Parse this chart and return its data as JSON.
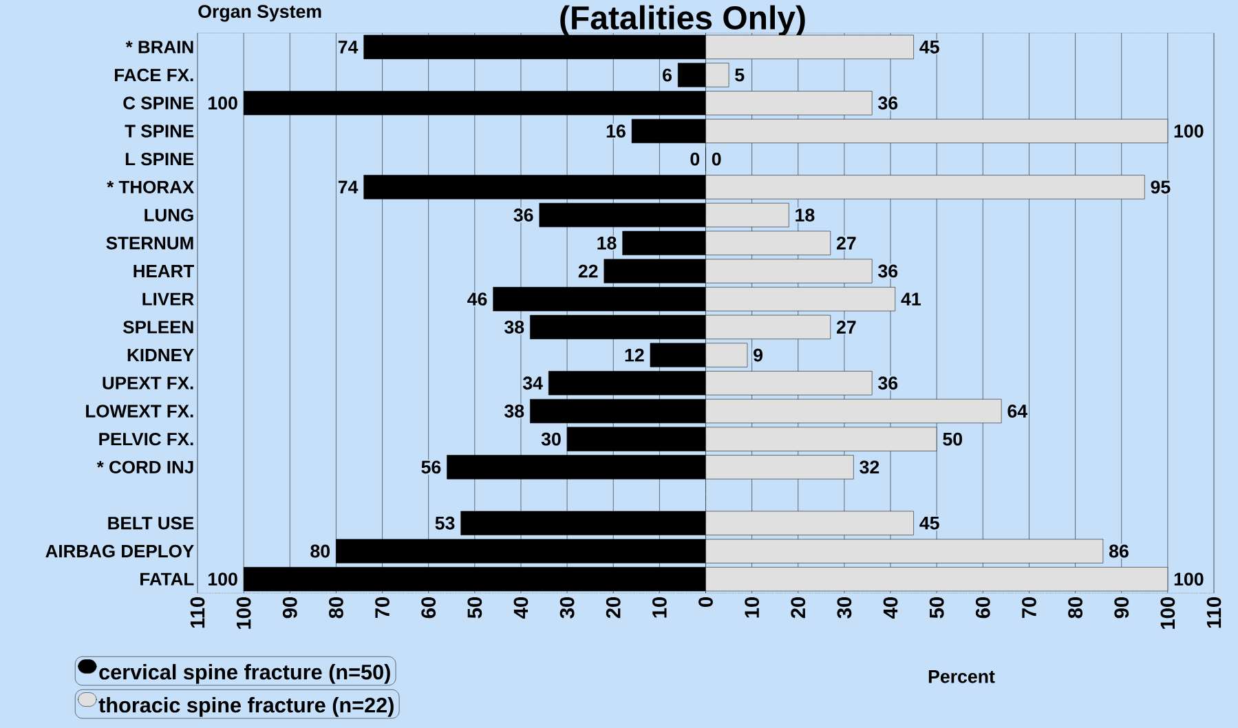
{
  "chart_data": [
    {
      "type": "bar",
      "orientation": "horizontal",
      "title": "(Fatalities Only)",
      "ylabel": "Organ System",
      "categories": [
        "* BRAIN",
        "FACE FX.",
        "C SPINE",
        "T SPINE",
        "L SPINE",
        "* THORAX",
        "LUNG",
        "STERNUM",
        "HEART",
        "LIVER",
        "SPLEEN",
        "KIDNEY",
        "UPEXT FX.",
        "LOWEXT FX.",
        "PELVIC FX.",
        "* CORD INJ",
        null,
        "BELT USE",
        "AIRBAG DEPLOY",
        "FATAL"
      ],
      "series": [
        {
          "name": "cervical spine fracture (n=50)",
          "color": "#000000",
          "values": [
            74,
            6,
            100,
            16,
            0,
            74,
            36,
            18,
            22,
            46,
            38,
            12,
            34,
            38,
            30,
            56,
            null,
            53,
            80,
            100
          ],
          "value_labels": [
            "74",
            "6",
            "100",
            "16",
            "0",
            "74",
            "36",
            "18",
            "22",
            "46",
            "38",
            "12",
            "34",
            "38",
            "30",
            "56",
            null,
            "53",
            "80",
            "100"
          ]
        }
      ],
      "xlim": [
        110,
        0
      ],
      "xticks": [
        110,
        100,
        90,
        80,
        70,
        60,
        50,
        40,
        30,
        20,
        10,
        0
      ],
      "grid": "x",
      "legend": "bottom left"
    },
    {
      "type": "bar",
      "orientation": "horizontal",
      "xlabel": "Percent",
      "categories": [
        null,
        null,
        null,
        null,
        null,
        null,
        null,
        null,
        null,
        null,
        null,
        null,
        null,
        null,
        null,
        null,
        null,
        null,
        null,
        null
      ],
      "series": [
        {
          "name": "thoracic spine fracture (n=22)",
          "color": "#e0e0e0",
          "values": [
            45,
            5,
            36,
            100,
            0,
            95,
            18,
            27,
            36,
            41,
            27,
            9,
            36,
            64,
            50,
            32,
            null,
            45,
            86,
            100
          ],
          "value_labels": [
            "45",
            "5",
            "36",
            "100",
            "0",
            "95",
            "18",
            "27",
            "36",
            "41",
            "27",
            "9",
            "36",
            "64",
            "50",
            "32",
            null,
            "45",
            "86",
            "100"
          ]
        }
      ],
      "xlim": [
        0,
        110
      ],
      "xticks": [
        10,
        20,
        30,
        40,
        50,
        60,
        70,
        80,
        90,
        100,
        110
      ],
      "grid": "x",
      "legend": "bottom left",
      "tick_labels": "x"
    }
  ]
}
